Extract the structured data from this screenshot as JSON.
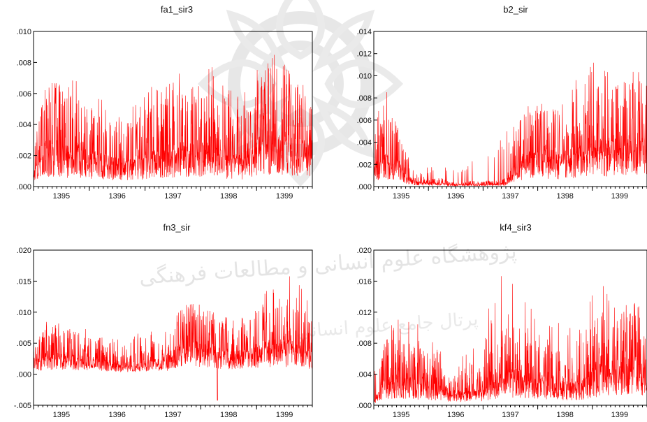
{
  "watermark": {
    "line1": "پژوهشگاه علوم انسانی و مطالعات فرهنگی",
    "line2": "پرتال جامع علوم انسانی"
  },
  "colors": {
    "series": "#ff0000",
    "axis": "#000000",
    "watermark": "#d6d6d6"
  },
  "chart_data": [
    {
      "type": "line",
      "title": "fa1_sir3",
      "x_range": [
        1394.5,
        1399.5
      ],
      "ylim": [
        0,
        0.01
      ],
      "y_ticks": [
        0,
        0.002,
        0.004,
        0.006,
        0.008,
        0.01
      ],
      "y_tick_labels": [
        ".000",
        ".002",
        ".004",
        ".006",
        ".008",
        ".010"
      ],
      "x_tick_labels": [
        "1395",
        "1396",
        "1397",
        "1398",
        "1399"
      ],
      "x": [
        1394.5,
        1394.7,
        1394.9,
        1395.1,
        1395.3,
        1395.5,
        1395.7,
        1395.9,
        1396.1,
        1396.3,
        1396.5,
        1396.7,
        1396.9,
        1397.1,
        1397.3,
        1397.5,
        1397.7,
        1397.9,
        1398.1,
        1398.3,
        1398.5,
        1398.7,
        1398.9,
        1399.1,
        1399.3,
        1399.5
      ],
      "level": [
        0.0012,
        0.0024,
        0.0026,
        0.0022,
        0.002,
        0.0019,
        0.0018,
        0.0016,
        0.0015,
        0.0016,
        0.0018,
        0.0021,
        0.0022,
        0.0023,
        0.0024,
        0.0025,
        0.0022,
        0.0018,
        0.0017,
        0.0018,
        0.0026,
        0.003,
        0.0029,
        0.0028,
        0.0026,
        0.0022
      ],
      "peak": [
        0.003,
        0.0068,
        0.007,
        0.0066,
        0.0075,
        0.0055,
        0.006,
        0.005,
        0.0048,
        0.0055,
        0.0065,
        0.0075,
        0.007,
        0.0083,
        0.0085,
        0.0082,
        0.0078,
        0.007,
        0.006,
        0.0065,
        0.008,
        0.0088,
        0.0083,
        0.008,
        0.0078,
        0.0064
      ]
    },
    {
      "type": "line",
      "title": "b2_sir",
      "x_range": [
        1394.5,
        1399.5
      ],
      "ylim": [
        0,
        0.014
      ],
      "y_ticks": [
        0,
        0.002,
        0.004,
        0.006,
        0.008,
        0.01,
        0.012,
        0.014
      ],
      "y_tick_labels": [
        ".000",
        ".002",
        ".004",
        ".006",
        ".008",
        ".010",
        ".012",
        ".014"
      ],
      "x_tick_labels": [
        "1395",
        "1396",
        "1397",
        "1398",
        "1399"
      ],
      "x": [
        1394.5,
        1394.7,
        1394.9,
        1395.1,
        1395.3,
        1395.5,
        1395.7,
        1395.9,
        1396.1,
        1396.3,
        1396.5,
        1396.7,
        1396.9,
        1397.1,
        1397.3,
        1397.5,
        1397.7,
        1397.9,
        1398.1,
        1398.3,
        1398.5,
        1398.7,
        1398.9,
        1399.1,
        1399.3,
        1399.5
      ],
      "level": [
        0.0016,
        0.0025,
        0.0024,
        0.0008,
        0.0004,
        0.0003,
        0.0003,
        0.0002,
        0.0002,
        0.0002,
        0.0002,
        0.0002,
        0.0003,
        0.002,
        0.0026,
        0.0028,
        0.0027,
        0.0026,
        0.0028,
        0.003,
        0.0034,
        0.0036,
        0.0035,
        0.0038,
        0.004,
        0.0034
      ],
      "peak": [
        0.005,
        0.0092,
        0.006,
        0.003,
        0.0015,
        0.0018,
        0.0025,
        0.002,
        0.0022,
        0.0025,
        0.003,
        0.0045,
        0.0055,
        0.007,
        0.0072,
        0.0085,
        0.008,
        0.009,
        0.009,
        0.0105,
        0.0112,
        0.0122,
        0.01,
        0.0098,
        0.0095,
        0.0093
      ]
    },
    {
      "type": "line",
      "title": "fn3_sir",
      "x_range": [
        1394.5,
        1399.5
      ],
      "ylim": [
        -0.005,
        0.02
      ],
      "y_ticks": [
        -0.005,
        0,
        0.005,
        0.01,
        0.015,
        0.02
      ],
      "y_tick_labels": [
        "-.005",
        ".000",
        ".005",
        ".010",
        ".015",
        ".020"
      ],
      "x_tick_labels": [
        "1395",
        "1396",
        "1397",
        "1398",
        "1399"
      ],
      "x": [
        1394.5,
        1394.7,
        1394.9,
        1395.1,
        1395.3,
        1395.5,
        1395.7,
        1395.9,
        1396.1,
        1396.3,
        1396.5,
        1396.7,
        1396.9,
        1397.1,
        1397.3,
        1397.5,
        1397.7,
        1397.9,
        1398.1,
        1398.3,
        1398.5,
        1398.7,
        1398.9,
        1399.1,
        1399.3,
        1399.5
      ],
      "level": [
        0.0015,
        0.0028,
        0.003,
        0.0028,
        0.0026,
        0.0024,
        0.002,
        0.0015,
        0.0012,
        0.0013,
        0.0017,
        0.002,
        0.0022,
        0.004,
        0.0045,
        0.0042,
        0.004,
        0.0032,
        0.003,
        0.0032,
        0.004,
        0.0045,
        0.0046,
        0.0045,
        0.0042,
        0.0032
      ],
      "peak": [
        0.004,
        0.0085,
        0.0088,
        0.008,
        0.0082,
        0.007,
        0.0065,
        0.006,
        0.0055,
        0.0065,
        0.0072,
        0.008,
        0.0075,
        0.0105,
        0.012,
        0.011,
        0.0105,
        0.01,
        0.009,
        0.0095,
        0.012,
        0.014,
        0.0145,
        0.0162,
        0.014,
        0.0125
      ],
      "dips": [
        {
          "x": 1397.8,
          "y": -0.0042
        }
      ]
    },
    {
      "type": "line",
      "title": "kf4_sir3",
      "x_range": [
        1394.5,
        1399.5
      ],
      "ylim": [
        0,
        0.02
      ],
      "y_ticks": [
        0,
        0.004,
        0.008,
        0.012,
        0.016,
        0.02
      ],
      "y_tick_labels": [
        ".000",
        ".004",
        ".008",
        ".012",
        ".016",
        ".020"
      ],
      "x_tick_labels": [
        "1395",
        "1396",
        "1397",
        "1398",
        "1399"
      ],
      "x": [
        1394.5,
        1394.7,
        1394.9,
        1395.1,
        1395.3,
        1395.5,
        1395.7,
        1395.9,
        1396.1,
        1396.3,
        1396.5,
        1396.7,
        1396.9,
        1397.1,
        1397.3,
        1397.5,
        1397.7,
        1397.9,
        1398.1,
        1398.3,
        1398.5,
        1398.7,
        1398.9,
        1399.1,
        1399.3,
        1399.5
      ],
      "level": [
        0.0003,
        0.003,
        0.0032,
        0.003,
        0.0028,
        0.0025,
        0.0022,
        0.0018,
        0.0015,
        0.0016,
        0.002,
        0.003,
        0.004,
        0.0038,
        0.0035,
        0.0032,
        0.003,
        0.0026,
        0.0024,
        0.0026,
        0.004,
        0.0045,
        0.0047,
        0.005,
        0.0052,
        0.0048
      ],
      "peak": [
        0.004,
        0.0105,
        0.0115,
        0.011,
        0.0105,
        0.0095,
        0.008,
        0.007,
        0.0065,
        0.0075,
        0.0095,
        0.017,
        0.018,
        0.015,
        0.013,
        0.014,
        0.0125,
        0.011,
        0.01,
        0.011,
        0.015,
        0.016,
        0.014,
        0.012,
        0.01,
        0.009
      ]
    }
  ]
}
